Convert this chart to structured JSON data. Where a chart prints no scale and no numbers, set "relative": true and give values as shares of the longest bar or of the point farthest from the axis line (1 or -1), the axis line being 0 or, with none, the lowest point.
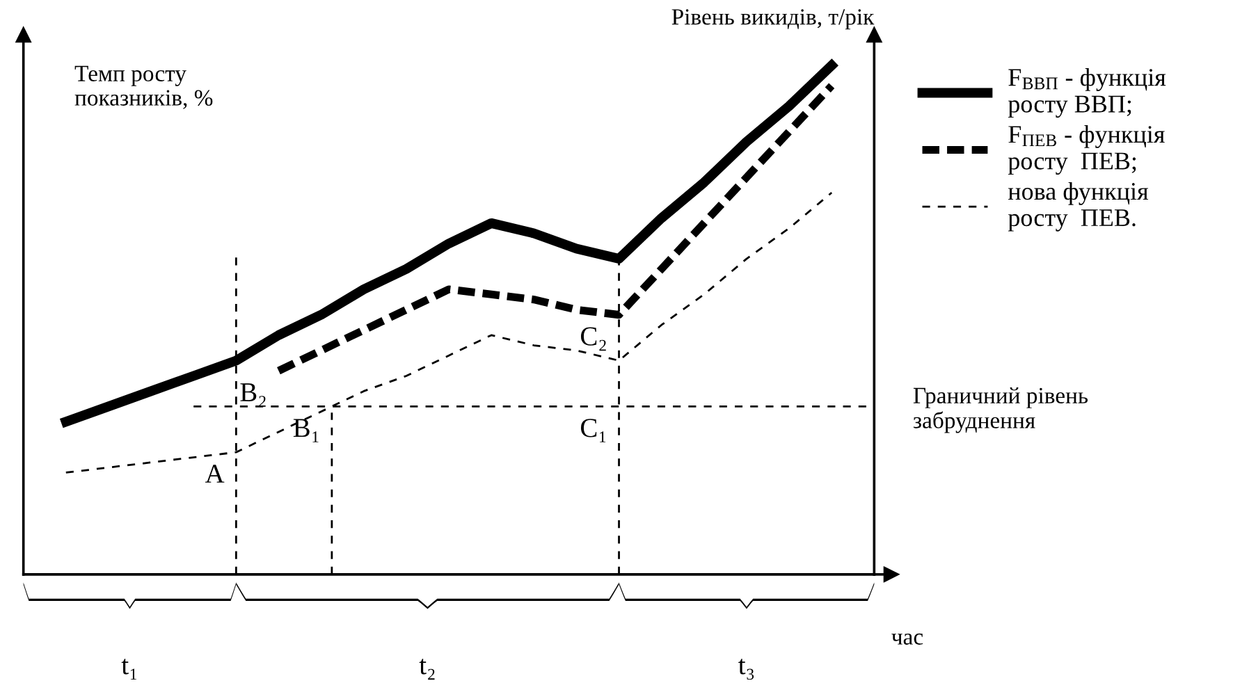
{
  "chart_data": {
    "type": "line",
    "relative": true,
    "xlabel": "час",
    "ylabel": "Темп росту\nпоказників, %",
    "y2label": "Рівень викидів, т/рік",
    "categories": [
      null,
      null,
      null,
      null,
      null,
      null,
      null,
      null,
      null,
      null,
      null,
      null,
      null,
      null,
      null,
      null,
      null,
      null,
      null,
      null,
      null
    ],
    "grid": false,
    "legend": "right",
    "marker": "none",
    "series": [
      {
        "name": "F$_{ВВП}$ - функція\nросту ВВП;",
        "color": "#000000",
        "line_style": "solid",
        "values": [
          null,
          0.3,
          0.33,
          0.36,
          0.39,
          0.42,
          0.47,
          0.51,
          0.56,
          0.6,
          0.65,
          0.69,
          0.67,
          0.64,
          0.62,
          0.7,
          0.77,
          0.85,
          0.92,
          1.0,
          null
        ]
      },
      {
        "name": "F$_{ПЕВ}$ - функція\nросту  ПЕВ;",
        "color": "#000000",
        "line_style": "dashed",
        "values": [
          null,
          null,
          null,
          null,
          null,
          null,
          0.4,
          0.44,
          0.48,
          0.52,
          0.56,
          0.55,
          0.54,
          0.52,
          0.51,
          0.6,
          0.69,
          0.78,
          0.87,
          0.96,
          null
        ]
      },
      {
        "name": "нова функція\nросту  ПЕВ.",
        "color": "#000000",
        "line_style": "dotted",
        "values": [
          null,
          0.2,
          0.21,
          0.22,
          0.23,
          0.24,
          0.28,
          0.32,
          0.36,
          0.39,
          0.43,
          0.47,
          0.45,
          0.44,
          0.42,
          0.49,
          0.55,
          0.62,
          0.68,
          0.75,
          null
        ]
      }
    ],
    "ref_lines": [
      {
        "axis": "y",
        "value": 0.33,
        "label": "Граничний рівень\nзабруднення",
        "line_style": "dotted"
      }
    ],
    "annotations": [
      "A",
      "B₁",
      "B₂",
      "C₁",
      "C₂",
      "t₁",
      "t₂",
      "t₃"
    ]
  }
}
